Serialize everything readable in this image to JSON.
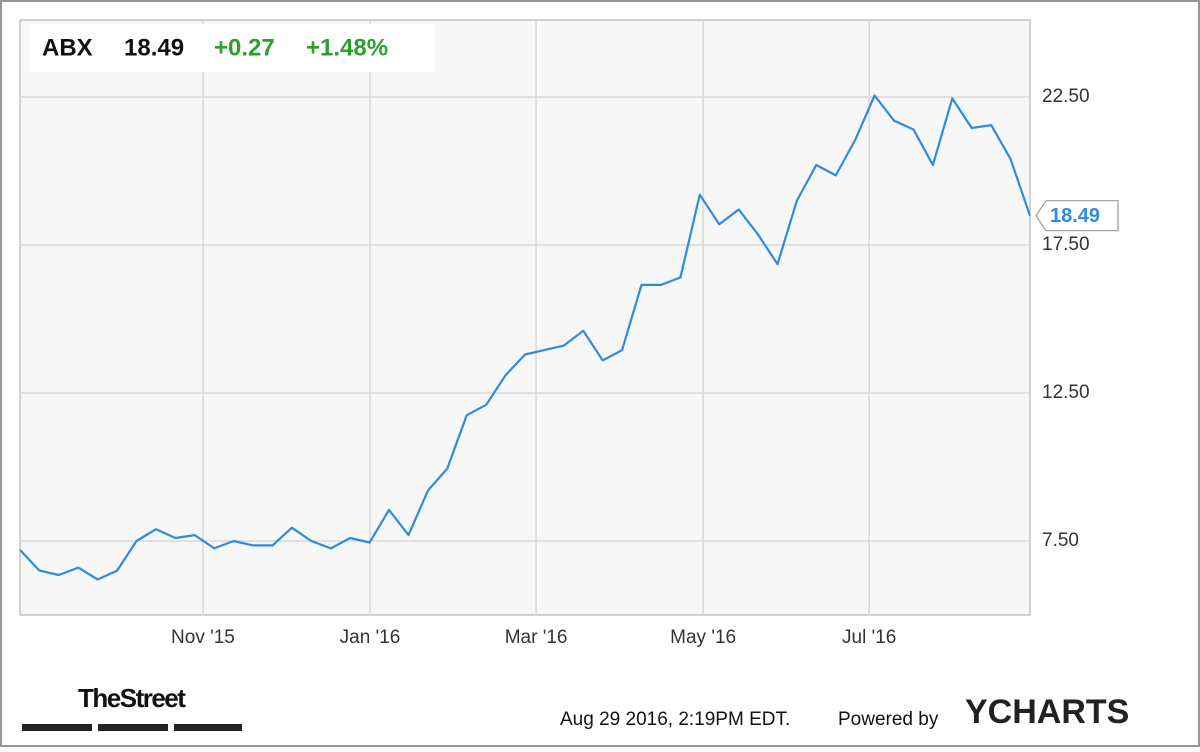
{
  "chart_data": {
    "type": "line",
    "ticker": "ABX",
    "last_price": 18.49,
    "change": "+0.27",
    "change_percent": "+1.48%",
    "x": [
      0,
      1,
      2,
      3,
      4,
      5,
      6,
      7,
      8,
      9,
      10,
      11,
      12,
      13,
      14,
      15,
      16,
      17,
      18,
      19,
      20,
      21,
      22,
      23,
      24,
      25,
      26,
      27,
      28,
      29,
      30,
      31,
      32,
      33,
      34,
      35,
      36,
      37,
      38,
      39,
      40,
      41,
      42,
      43,
      44,
      45,
      46,
      47,
      48,
      49,
      50,
      51,
      52
    ],
    "series": [
      {
        "name": "ABX",
        "color": "#2f8be0",
        "values": [
          7.2,
          6.5,
          6.35,
          6.6,
          6.2,
          6.5,
          7.5,
          7.9,
          7.6,
          7.7,
          7.25,
          7.5,
          7.35,
          7.35,
          7.95,
          7.5,
          7.25,
          7.6,
          7.45,
          8.55,
          7.7,
          9.2,
          9.95,
          11.75,
          12.1,
          13.1,
          13.8,
          13.95,
          14.1,
          14.6,
          13.6,
          13.95,
          16.15,
          16.15,
          16.4,
          19.2,
          18.2,
          18.7,
          17.85,
          16.85,
          19.0,
          20.2,
          19.85,
          21.05,
          22.55,
          21.7,
          21.4,
          20.2,
          22.45,
          21.45,
          21.55,
          20.4,
          18.49
        ]
      }
    ],
    "xlim": [
      0,
      52
    ],
    "xticks": [
      {
        "value": 9.42,
        "label": "Nov '15"
      },
      {
        "value": 18.02,
        "label": "Jan '16"
      },
      {
        "value": 26.57,
        "label": "Mar '16"
      },
      {
        "value": 35.17,
        "label": "May '16"
      },
      {
        "value": 43.72,
        "label": "Jul '16"
      }
    ],
    "ylim": [
      5.0,
      25.1
    ],
    "yticks": [
      {
        "value": 7.5,
        "label": "7.50"
      },
      {
        "value": 12.5,
        "label": "12.50"
      },
      {
        "value": 17.5,
        "label": "17.50"
      },
      {
        "value": 22.5,
        "label": "22.50"
      }
    ],
    "grid": true
  },
  "footer": {
    "timestamp": "Aug 29 2016, 2:19PM EDT.",
    "powered_by": "Powered by",
    "brand": "YCHARTS",
    "source": "TheStreet"
  }
}
